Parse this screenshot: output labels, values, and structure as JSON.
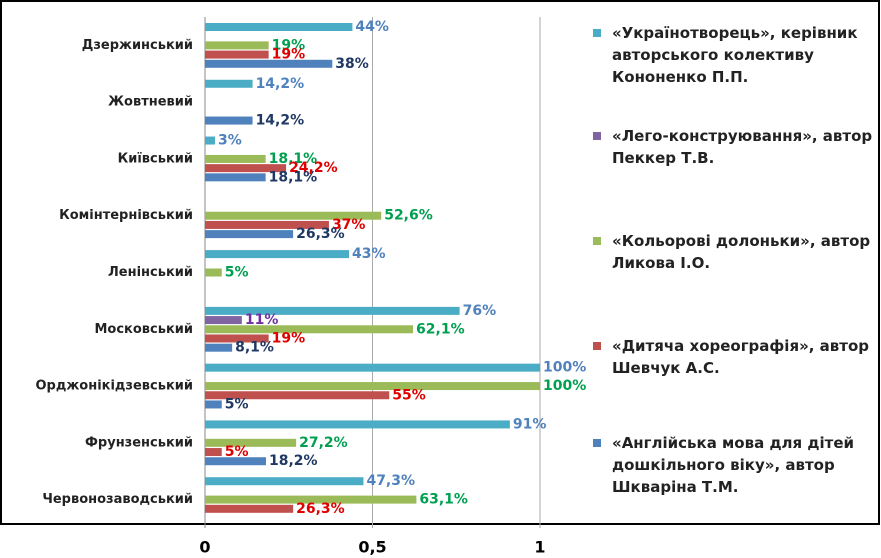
{
  "chart_data": {
    "type": "bar",
    "orientation": "horizontal",
    "categories": [
      "Дзержинський",
      "Жовтневий",
      "Київський",
      "Комінтернівський",
      "Ленінський",
      "Московський",
      "Орджонікідзевський",
      "Фрунзенський",
      "Червонозаводський"
    ],
    "series": [
      {
        "name": "«Українотворець», керівник авторського колективу Кононенко П.П.",
        "color": "#4bacc6",
        "label_color": "#4f81bd",
        "values": [
          0.44,
          0.142,
          0.03,
          null,
          0.43,
          0.76,
          1.0,
          0.91,
          0.473
        ],
        "value_labels": [
          "44%",
          "14,2%",
          "3%",
          null,
          "43%",
          "76%",
          "100%",
          "91%",
          "47,3%"
        ]
      },
      {
        "name": "«Лего-конструювання», автор Пеккер Т.В.",
        "color": "#8064a2",
        "label_color": "#7030a0",
        "values": [
          null,
          null,
          null,
          null,
          null,
          0.11,
          null,
          null,
          null
        ],
        "value_labels": [
          null,
          null,
          null,
          null,
          null,
          "11%",
          null,
          null,
          null
        ]
      },
      {
        "name": "«Кольорові  долоньки», автор Ликова І.О.",
        "color": "#9bbb59",
        "label_color": "#00a050",
        "values": [
          0.19,
          null,
          0.181,
          0.526,
          0.05,
          0.621,
          1.0,
          0.272,
          0.631
        ],
        "value_labels": [
          "19%",
          null,
          "18,1%",
          "52,6%",
          "5%",
          "62,1%",
          "100%",
          "27,2%",
          "63,1%"
        ]
      },
      {
        "name": "«Дитяча  хореографія», автор Шевчук А.С.",
        "color": "#c0504d",
        "label_color": "#e00000",
        "values": [
          0.19,
          null,
          0.242,
          0.37,
          null,
          0.19,
          0.55,
          0.05,
          0.263
        ],
        "value_labels": [
          "19%",
          null,
          "24,2%",
          "37%",
          null,
          "19%",
          "55%",
          "5%",
          "26,3%"
        ]
      },
      {
        "name": "«Англійська мова для дітей дошкільного віку», автор Шкваріна Т.М.",
        "color": "#4f81bd",
        "label_color": "#1f3864",
        "values": [
          0.38,
          0.142,
          0.181,
          0.263,
          null,
          0.081,
          0.05,
          0.182,
          null
        ],
        "value_labels": [
          "38%",
          "14,2%",
          "18,1%",
          "26,3%",
          null,
          "8,1%",
          "5%",
          "18,2%",
          null
        ]
      }
    ],
    "xlim": [
      0,
      1
    ],
    "xticks": [
      0,
      {
        "value": 0.5,
        "label": "0,5"
      },
      1
    ],
    "grid": true,
    "legend": "right"
  }
}
